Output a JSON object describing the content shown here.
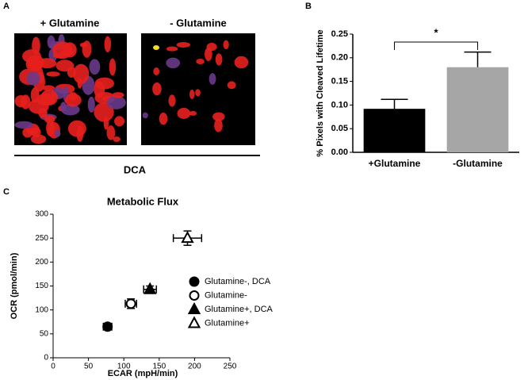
{
  "panel_labels": {
    "a": "A",
    "b": "B",
    "c": "C"
  },
  "images": {
    "left_label": "+ Glutamine",
    "right_label": "- Glutamine",
    "group_label": "DCA"
  },
  "chart_data": [
    {
      "type": "bar",
      "ylabel": "% Pixels with Cleaved Lifetime",
      "categories": [
        "+Glutamine",
        "-Glutamine"
      ],
      "values": [
        0.092,
        0.18
      ],
      "errors": [
        0.02,
        0.032
      ],
      "colors": [
        "#000000",
        "#a6a6a6"
      ],
      "ylim": [
        0,
        0.25
      ],
      "yticks": [
        {
          "value": 0,
          "label": "0.00"
        },
        {
          "value": 0.05,
          "label": "0.05"
        },
        {
          "value": 0.1,
          "label": "0.10"
        },
        {
          "value": 0.15,
          "label": "0.15"
        },
        {
          "value": 0.2,
          "label": "0.20"
        },
        {
          "value": 0.25,
          "label": "0.25"
        }
      ],
      "annotation": "*"
    },
    {
      "type": "scatter",
      "title": "Metabolic Flux",
      "xlabel": "ECAR (mpH/min)",
      "ylabel": "OCR (pmol/min)",
      "xlim": [
        0,
        250
      ],
      "ylim": [
        0,
        300
      ],
      "xticks": [
        0,
        50,
        100,
        150,
        200,
        250
      ],
      "yticks": [
        0,
        50,
        100,
        150,
        200,
        250,
        300
      ],
      "series": [
        {
          "name": "Glutamine-, DCA",
          "marker": "circle",
          "filled": true,
          "color": "#000000",
          "x": [
            77
          ],
          "values": [
            65
          ],
          "xerr": [
            6
          ],
          "yerr": [
            5
          ]
        },
        {
          "name": "Glutamine-",
          "marker": "circle",
          "filled": false,
          "color": "#000000",
          "x": [
            110
          ],
          "values": [
            113
          ],
          "xerr": [
            8
          ],
          "yerr": [
            10
          ]
        },
        {
          "name": "Glutamine+, DCA",
          "marker": "triangle",
          "filled": true,
          "color": "#000000",
          "x": [
            137
          ],
          "values": [
            143
          ],
          "xerr": [
            9
          ],
          "yerr": [
            7
          ]
        },
        {
          "name": "Glutamine+",
          "marker": "triangle",
          "filled": false,
          "color": "#000000",
          "x": [
            190
          ],
          "values": [
            250
          ],
          "xerr": [
            20
          ],
          "yerr": [
            15
          ]
        }
      ]
    }
  ]
}
